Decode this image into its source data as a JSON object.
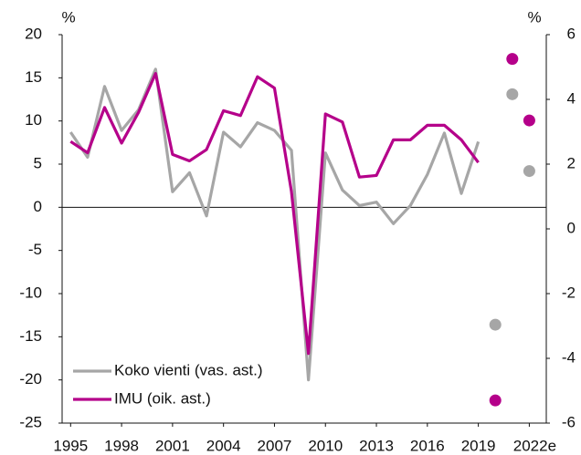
{
  "chart_data": {
    "type": "line",
    "y_label": "%",
    "y2_label": "%",
    "x": [
      1995,
      1996,
      1997,
      1998,
      1999,
      2000,
      2001,
      2002,
      2003,
      2004,
      2005,
      2006,
      2007,
      2008,
      2009,
      2010,
      2011,
      2012,
      2013,
      2014,
      2015,
      2016,
      2017,
      2018,
      2019
    ],
    "xlim": [
      1994.5,
      2023
    ],
    "xticks": [
      1995,
      1998,
      2001,
      2004,
      2007,
      2010,
      2013,
      2016,
      2019,
      {
        "value": 2022,
        "label": "2022e"
      }
    ],
    "ylim": [
      -25,
      20
    ],
    "yticks": [
      20,
      15,
      10,
      5,
      0,
      -5,
      -10,
      -15,
      -20,
      -25
    ],
    "y2lim": [
      -6,
      6
    ],
    "y2ticks": [
      6,
      4,
      2,
      0,
      -2,
      -4,
      -6
    ],
    "legend": "lower left",
    "series": [
      {
        "name": "Koko vienti (vas. ast.)",
        "color": "#a6a6a6",
        "axis": "y",
        "values": [
          8.7,
          5.8,
          14,
          8.9,
          11.3,
          16,
          1.8,
          4,
          -1,
          8.7,
          7,
          9.8,
          8.9,
          6.6,
          -20,
          6.3,
          2,
          0.2,
          0.6,
          -1.9,
          0.2,
          3.8,
          8.6,
          1.6,
          7.6
        ]
      },
      {
        "name": "IMU (oik. ast.)",
        "color": "#b5008a",
        "axis": "y2",
        "values": [
          2.7,
          2.35,
          3.75,
          2.65,
          3.6,
          4.8,
          2.3,
          2.1,
          2.45,
          3.65,
          3.5,
          4.7,
          4.35,
          1.15,
          -3.85,
          3.55,
          3.3,
          1.6,
          1.65,
          2.75,
          2.75,
          3.2,
          3.2,
          2.75,
          2.05
        ]
      },
      {
        "style": "points",
        "color": "#a6a6a6",
        "axis": "y",
        "x": [
          2020,
          2021,
          2022
        ],
        "values": [
          -13.6,
          13.1,
          4.2
        ]
      },
      {
        "style": "points",
        "color": "#b5008a",
        "axis": "y2",
        "x": [
          2020,
          2021,
          2022
        ],
        "values": [
          -5.3,
          5.25,
          3.35
        ]
      }
    ]
  }
}
